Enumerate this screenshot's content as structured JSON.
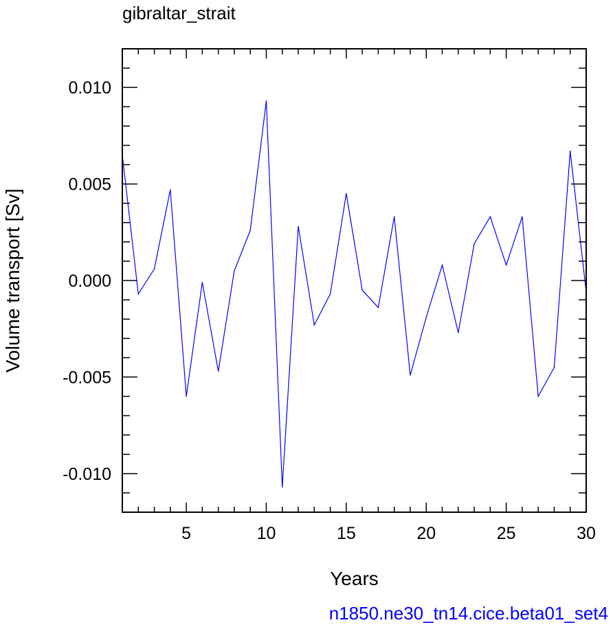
{
  "chart_data": {
    "type": "line",
    "title": "gibraltar_strait",
    "xlabel": "Years",
    "ylabel": "Volume transport [Sv]",
    "xlim": [
      1,
      30
    ],
    "ylim": [
      -0.012,
      0.012
    ],
    "x_ticks": [
      5,
      10,
      15,
      20,
      25,
      30
    ],
    "x_tick_labels": [
      "5",
      "10",
      "15",
      "20",
      "25",
      "30"
    ],
    "y_ticks": [
      0.01,
      0.005,
      0.0,
      -0.005,
      -0.01
    ],
    "y_tick_labels": [
      "0.010",
      "0.005",
      "0.000",
      "-0.005",
      "-0.010"
    ],
    "grid": false,
    "footer": "n1850.ne30_tn14.cice.beta01_set4",
    "colors": {
      "line": "#0000ff",
      "footer": "#0000ff",
      "axes": "#000000"
    },
    "series": [
      {
        "x": [
          1,
          2,
          3,
          4,
          5,
          6,
          7,
          8,
          9,
          10,
          11,
          12,
          13,
          14,
          15,
          16,
          17,
          18,
          19,
          20,
          21,
          22,
          23,
          24,
          25,
          26,
          27,
          28,
          29,
          30
        ],
        "values": [
          0.0065,
          -0.0007,
          0.0006,
          0.0047,
          -0.006,
          -0.0001,
          -0.0047,
          0.0005,
          0.0026,
          0.0093,
          -0.0107,
          0.0028,
          -0.0023,
          -0.0007,
          0.0045,
          -0.0005,
          -0.0014,
          0.0033,
          -0.0049,
          -0.0019,
          0.0008,
          -0.0027,
          0.0019,
          0.0033,
          0.0008,
          0.0033,
          -0.006,
          -0.0045,
          0.0067,
          -0.0006
        ]
      }
    ]
  }
}
